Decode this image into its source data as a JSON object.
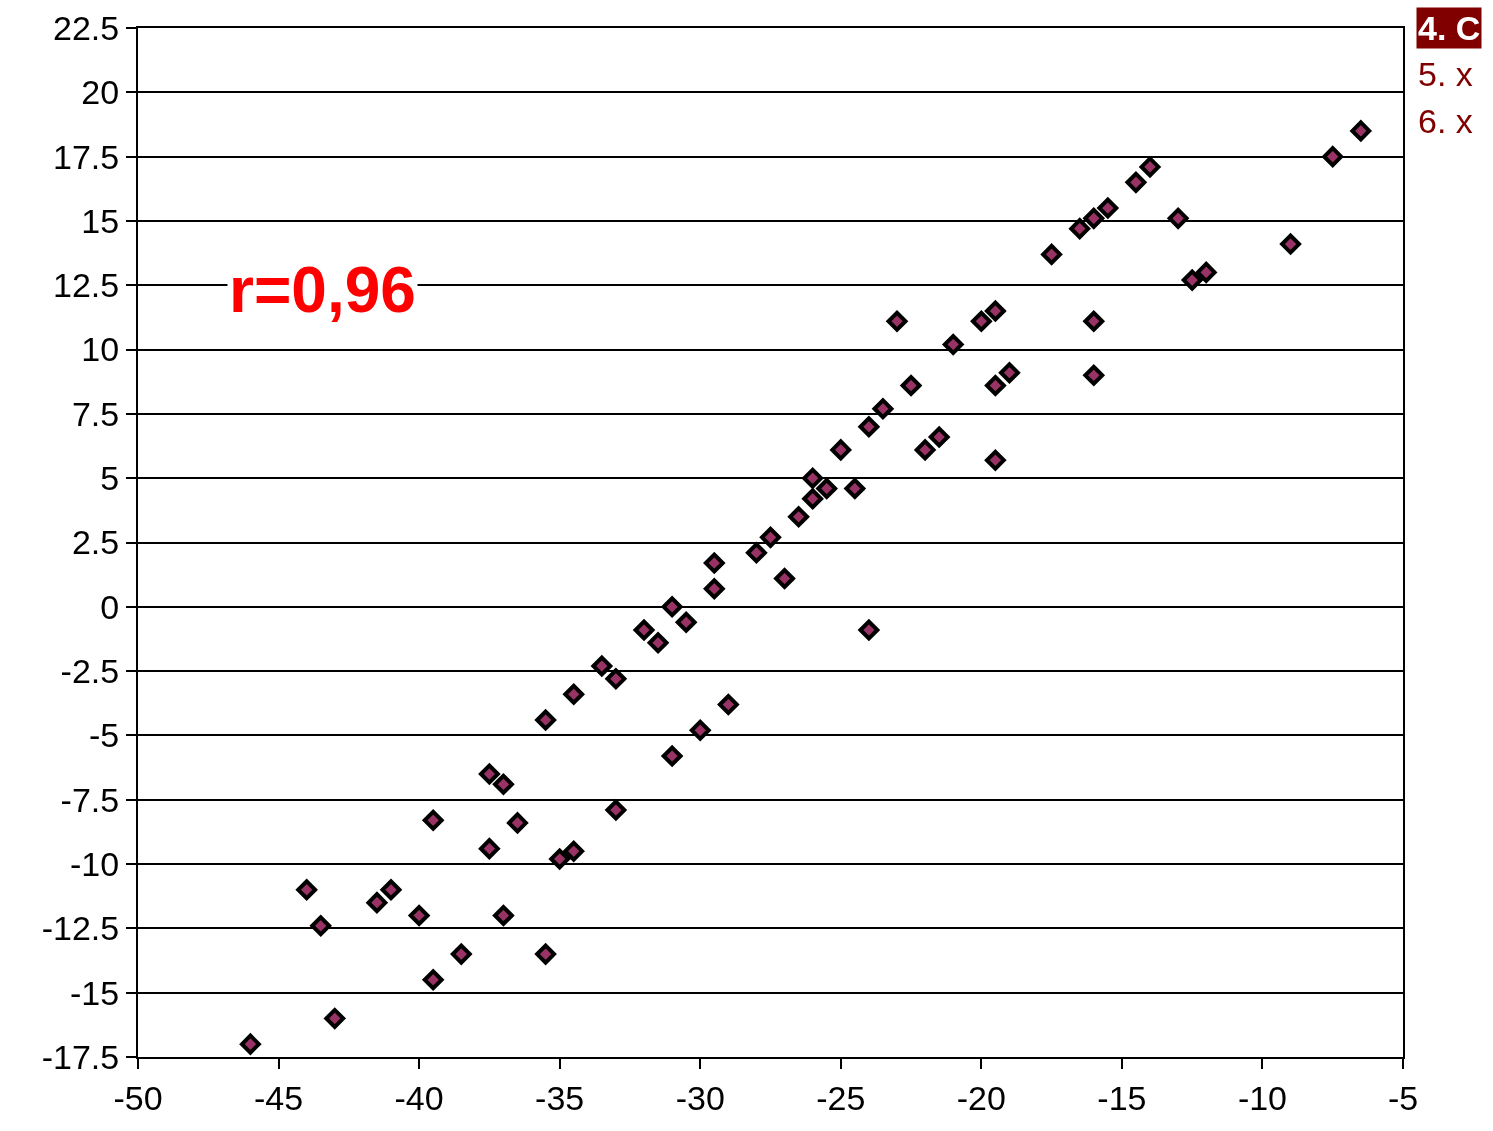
{
  "chart_data": {
    "type": "scatter",
    "x": [
      -46,
      -44,
      -43.5,
      -43,
      -41.5,
      -41,
      -40,
      -39.5,
      -39.5,
      -38.5,
      -37.5,
      -37.5,
      -37,
      -37,
      -36.5,
      -35.5,
      -35.5,
      -35,
      -34.5,
      -34.5,
      -33.5,
      -33,
      -33,
      -32,
      -31.5,
      -31,
      -31,
      -30.5,
      -30,
      -29.5,
      -29.5,
      -29,
      -28,
      -27.5,
      -27,
      -26.5,
      -26,
      -26,
      -25.5,
      -25,
      -24.5,
      -24,
      -24,
      -23.5,
      -23,
      -22.5,
      -22,
      -21.5,
      -21,
      -20,
      -19.5,
      -19.5,
      -19.5,
      -19,
      -17.5,
      -16.5,
      -16,
      -16,
      -16,
      -15.5,
      -14.5,
      -14,
      -13,
      -12.5,
      -12,
      -9,
      -7.5,
      -6.5
    ],
    "series": [
      {
        "color": "#993366",
        "values": [
          -17,
          -11,
          -12.4,
          -16,
          -11.5,
          -11,
          -12,
          -8.3,
          -14.5,
          -13.5,
          -9.4,
          -6.5,
          -6.9,
          -12,
          -8.4,
          -4.4,
          -13.5,
          -9.8,
          -9.5,
          -3.4,
          -2.3,
          -2.8,
          -7.9,
          -0.9,
          -1.4,
          0,
          -5.8,
          -0.6,
          -4.8,
          1.7,
          0.7,
          -3.8,
          2.1,
          2.7,
          1.1,
          3.5,
          5,
          4.2,
          4.6,
          6.1,
          4.6,
          7,
          -0.9,
          7.7,
          11.1,
          8.6,
          6.1,
          6.6,
          10.2,
          11.1,
          11.5,
          8.6,
          5.7,
          9.1,
          13.7,
          14.7,
          15.1,
          11.1,
          9,
          15.5,
          16.5,
          17.1,
          15.1,
          12.7,
          13,
          14.1,
          17.5,
          18.5
        ]
      }
    ],
    "marker": "diamond",
    "xlim": [
      -50,
      -5
    ],
    "xticks": [
      -50,
      -45,
      -40,
      -35,
      -30,
      -25,
      -20,
      -15,
      -10,
      -5
    ],
    "ylim": [
      -17.5,
      22.5
    ],
    "yticks": [
      -17.5,
      -15,
      -12.5,
      -10,
      -7.5,
      -5,
      -2.5,
      0,
      2.5,
      5,
      7.5,
      10,
      12.5,
      15,
      17.5,
      20,
      22.5
    ],
    "grid": "y",
    "annotations": [
      "r=0,96",
      "4. C",
      "5. x",
      "6. x"
    ]
  }
}
